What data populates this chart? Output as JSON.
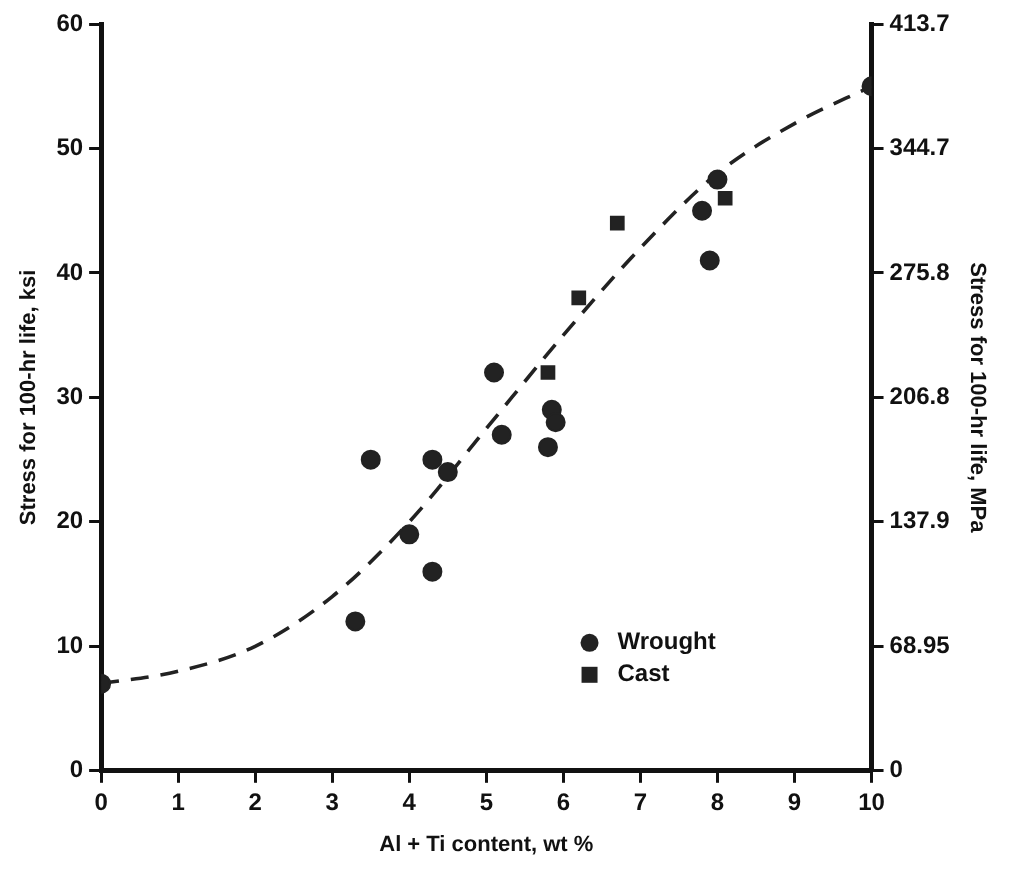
{
  "chart_data": {
    "type": "scatter",
    "xlabel": "Al + Ti content, wt %",
    "ylabel": "Stress for 100-hr life, ksi",
    "y2label": "Stress for 100-hr life, MPa",
    "xlim": [
      0,
      10
    ],
    "xticks": [
      0,
      1,
      2,
      3,
      4,
      5,
      6,
      7,
      8,
      9,
      10
    ],
    "ylim": [
      0,
      60
    ],
    "yticks": [
      0,
      10,
      20,
      30,
      40,
      50,
      60
    ],
    "y2lim": [
      0,
      413.7
    ],
    "y2ticks": [
      0,
      68.95,
      137.9,
      206.8,
      275.8,
      344.7,
      413.7
    ],
    "grid": false,
    "legend": "bottom right",
    "series": [
      {
        "name": "Wrought",
        "color": "#222222",
        "marker": "circle",
        "x": [
          0,
          3.3,
          3.5,
          4.0,
          4.3,
          4.3,
          4.5,
          5.1,
          5.2,
          5.85,
          5.9,
          5.8,
          7.9,
          7.8,
          8.0,
          10
        ],
        "values": [
          7,
          12,
          25,
          19,
          25,
          16,
          24,
          32,
          27,
          29,
          28,
          26,
          41,
          45,
          47.5,
          55
        ]
      },
      {
        "name": "Cast",
        "color": "#222222",
        "marker": "square",
        "x": [
          5.8,
          6.2,
          6.7,
          8.1
        ],
        "values": [
          32,
          38,
          44,
          46
        ]
      },
      {
        "type": "line",
        "color": "#222222",
        "line_style": "dashed",
        "marker": "none",
        "x": [
          0,
          1,
          2,
          3,
          4,
          5,
          6,
          7,
          8,
          9,
          10
        ],
        "values": [
          7,
          8,
          10,
          14,
          20,
          27.5,
          35,
          42,
          48,
          52,
          55
        ]
      }
    ]
  }
}
